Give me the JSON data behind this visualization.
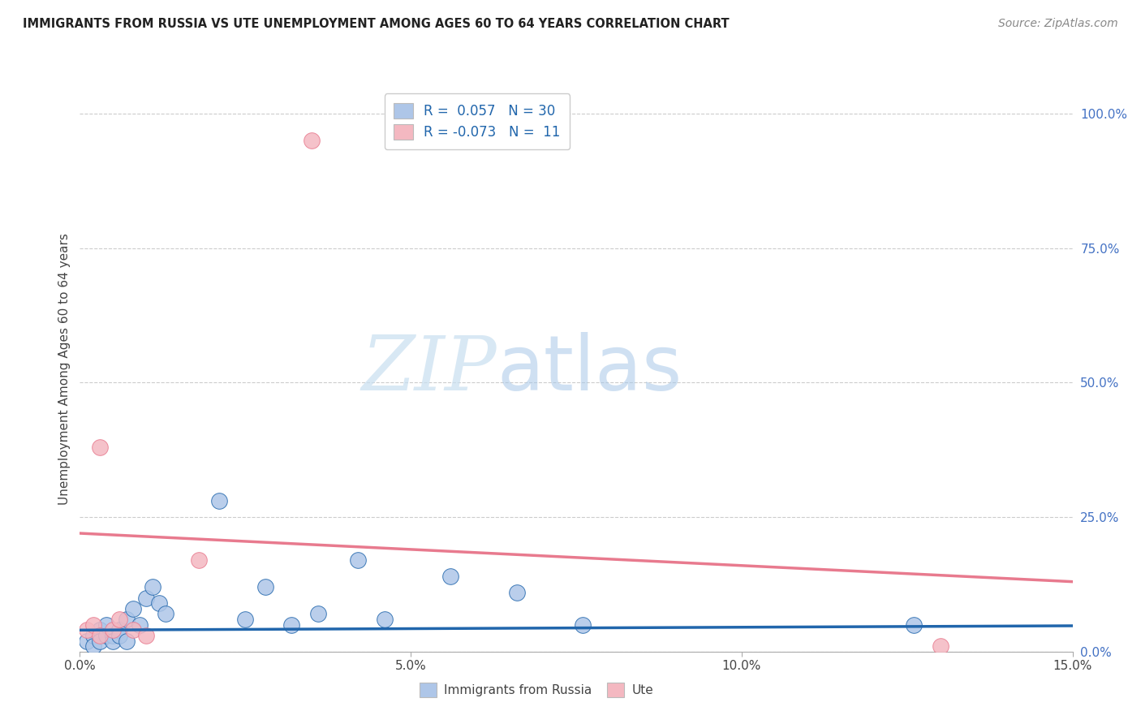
{
  "title": "IMMIGRANTS FROM RUSSIA VS UTE UNEMPLOYMENT AMONG AGES 60 TO 64 YEARS CORRELATION CHART",
  "source": "Source: ZipAtlas.com",
  "ylabel": "Unemployment Among Ages 60 to 64 years",
  "xlim": [
    0.0,
    0.15
  ],
  "ylim": [
    0.0,
    1.05
  ],
  "x_ticks": [
    0.0,
    0.05,
    0.1,
    0.15
  ],
  "x_tick_labels": [
    "0.0%",
    "5.0%",
    "10.0%",
    "15.0%"
  ],
  "y_ticks_right": [
    0.0,
    0.25,
    0.5,
    0.75,
    1.0
  ],
  "y_tick_labels_right": [
    "0.0%",
    "25.0%",
    "50.0%",
    "75.0%",
    "100.0%"
  ],
  "russia_color": "#aec6e8",
  "ute_color": "#f4b8c1",
  "russia_line_color": "#2166ac",
  "ute_line_color": "#e87a8e",
  "russia_R": 0.057,
  "russia_N": 30,
  "ute_R": -0.073,
  "ute_N": 11,
  "watermark_zip": "ZIP",
  "watermark_atlas": "atlas",
  "legend_label_russia": "Immigrants from Russia",
  "legend_label_ute": "Ute",
  "russia_x": [
    0.001,
    0.002,
    0.002,
    0.003,
    0.003,
    0.004,
    0.004,
    0.005,
    0.005,
    0.006,
    0.006,
    0.007,
    0.007,
    0.008,
    0.009,
    0.01,
    0.011,
    0.012,
    0.013,
    0.021,
    0.025,
    0.028,
    0.032,
    0.036,
    0.042,
    0.046,
    0.056,
    0.066,
    0.076,
    0.126
  ],
  "russia_y": [
    0.02,
    0.03,
    0.01,
    0.04,
    0.02,
    0.03,
    0.05,
    0.03,
    0.02,
    0.04,
    0.03,
    0.02,
    0.06,
    0.08,
    0.05,
    0.1,
    0.12,
    0.09,
    0.07,
    0.28,
    0.06,
    0.12,
    0.05,
    0.07,
    0.17,
    0.06,
    0.14,
    0.11,
    0.05,
    0.05
  ],
  "ute_x": [
    0.001,
    0.002,
    0.003,
    0.003,
    0.005,
    0.006,
    0.008,
    0.01,
    0.018,
    0.035,
    0.13
  ],
  "ute_y": [
    0.04,
    0.05,
    0.03,
    0.38,
    0.04,
    0.06,
    0.04,
    0.03,
    0.17,
    0.95,
    0.01
  ],
  "russia_line_y0": 0.04,
  "russia_line_y1": 0.048,
  "ute_line_y0": 0.22,
  "ute_line_y1": 0.13
}
